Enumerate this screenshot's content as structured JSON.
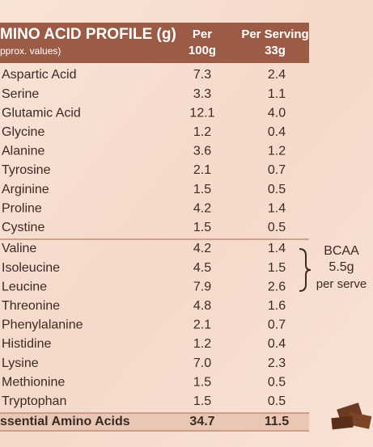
{
  "header": {
    "title": "MINO ACID PROFILE (g)",
    "subtitle": "pprox. values)",
    "col1": [
      "Per",
      "100g"
    ],
    "col2": [
      "Per Serving",
      "33g"
    ]
  },
  "rows": [
    [
      "Aspartic Acid",
      "7.3",
      "2.4"
    ],
    [
      "Serine",
      "3.3",
      "1.1"
    ],
    [
      "Glutamic Acid",
      "12.1",
      "4.0"
    ],
    [
      "Glycine",
      "1.2",
      "0.4"
    ],
    [
      "Alanine",
      "3.6",
      "1.2"
    ],
    [
      "Tyrosine",
      "2.1",
      "0.7"
    ],
    [
      "Arginine",
      "1.5",
      "0.5"
    ],
    [
      "Proline",
      "4.2",
      "1.4"
    ],
    [
      "Cystine",
      "1.5",
      "0.5"
    ],
    [
      "Valine",
      "4.2",
      "1.4"
    ],
    [
      "Isoleucine",
      "4.5",
      "1.5"
    ],
    [
      "Leucine",
      "7.9",
      "2.6"
    ],
    [
      "Threonine",
      "4.8",
      "1.6"
    ],
    [
      "Phenylalanine",
      "2.1",
      "0.7"
    ],
    [
      "Histidine",
      "1.2",
      "0.4"
    ],
    [
      "Lysine",
      "7.0",
      "2.3"
    ],
    [
      "Methionine",
      "1.5",
      "0.5"
    ],
    [
      "Tryptophan",
      "1.5",
      "0.5"
    ]
  ],
  "total": [
    "ssential Amino Acids",
    "34.7",
    "11.5"
  ],
  "bcaa_note": [
    "BCAA",
    "5.5g",
    "per serve"
  ]
}
